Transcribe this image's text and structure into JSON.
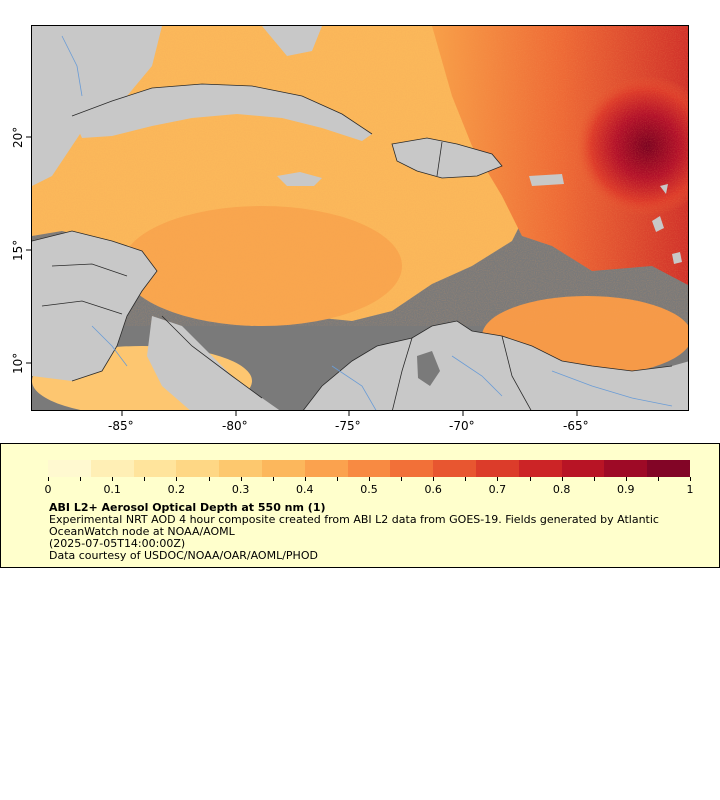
{
  "map": {
    "x_ticks": [
      "-85°",
      "-80°",
      "-75°",
      "-70°",
      "-65°"
    ],
    "y_ticks": [
      "20°",
      "15°",
      "10°"
    ],
    "colors": {
      "no_data_land": "#c8c8c8",
      "ocean_no_data": "#7a7a7a",
      "borders": "#333333",
      "rivers": "#6a9cd6"
    }
  },
  "legend": {
    "colorbar_ticks": [
      "0",
      "0.1",
      "0.2",
      "0.3",
      "0.4",
      "0.5",
      "0.6",
      "0.7",
      "0.8",
      "0.9",
      "1"
    ],
    "title": "ABI L2+ Aerosol Optical Depth at 550 nm (1)",
    "description": "Experimental NRT AOD 4 hour composite created from ABI L2 data from GOES-19. Fields generated by Atlantic OceanWatch node at NOAA/AOML",
    "timestamp": "(2025-07-05T14:00:00Z)",
    "credit": "Data courtesy of USDOC/NOAA/OAR/AOML/PHOD",
    "palette": [
      "#fff9d0",
      "#ffefb5",
      "#ffe49c",
      "#fed785",
      "#fdc86e",
      "#fcb75c",
      "#fba24e",
      "#f88a42",
      "#f27038",
      "#e85630",
      "#dc3c2a",
      "#cc2426",
      "#b81425",
      "#9e0a26",
      "#820526"
    ]
  }
}
